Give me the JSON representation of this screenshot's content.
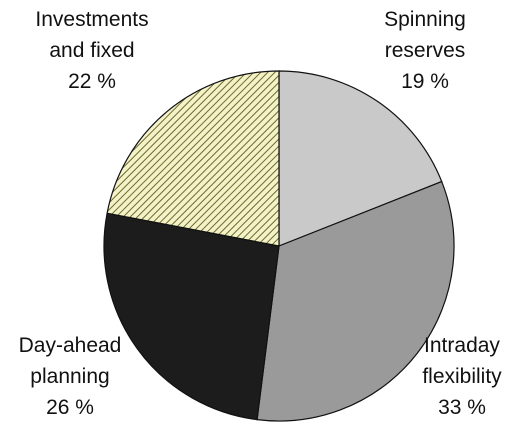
{
  "chart_data": {
    "type": "pie",
    "categories": [
      "Spinning reserves",
      "Intraday flexibility",
      "Day-ahead planning",
      "Investments and fixed"
    ],
    "values": [
      19,
      33,
      26,
      22
    ],
    "value_labels": [
      "19 %",
      "33 %",
      "26 %",
      "22 %"
    ],
    "colors": [
      "#c9c9c9",
      "#9a9a9a",
      "#1c1c1c",
      "#f4f2c8"
    ]
  }
}
